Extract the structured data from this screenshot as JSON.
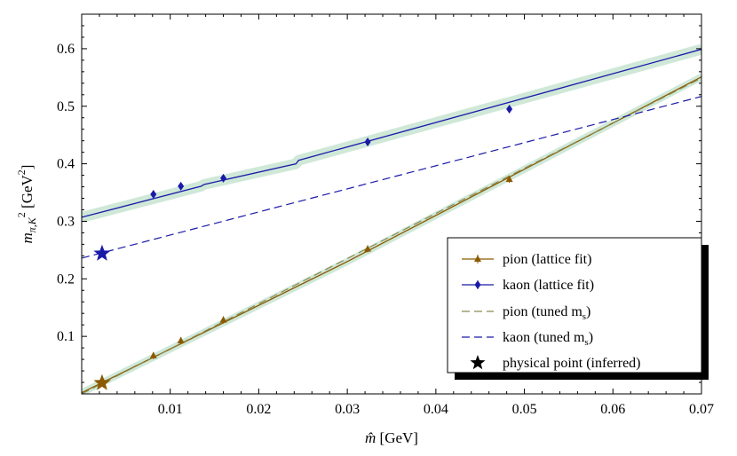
{
  "chart_data": {
    "type": "scatter",
    "title": "",
    "xlabel": "m̂ [GeV]",
    "ylabel": "m_{π,K}² [GeV²]",
    "xlim": [
      0,
      0.07
    ],
    "ylim": [
      0,
      0.66
    ],
    "xticks": [
      0.01,
      0.02,
      0.03,
      0.04,
      0.05,
      0.06,
      0.07
    ],
    "xtick_labels": [
      "0.01",
      "0.02",
      "0.03",
      "0.04",
      "0.05",
      "0.06",
      "0.07"
    ],
    "yticks": [
      0.1,
      0.2,
      0.3,
      0.4,
      0.5,
      0.6
    ],
    "ytick_labels": [
      "0.1",
      "0.2",
      "0.3",
      "0.4",
      "0.5",
      "0.6"
    ],
    "grid": false,
    "legend_position": "bottom-right",
    "series": [
      {
        "name": "pion (lattice fit)",
        "kind": "points-with-fit",
        "color": "#8B5A00",
        "marker": "triangle",
        "points": [
          {
            "x": 0.0081,
            "y": 0.0665
          },
          {
            "x": 0.0112,
            "y": 0.0925
          },
          {
            "x": 0.016,
            "y": 0.1285
          },
          {
            "x": 0.0323,
            "y": 0.252
          },
          {
            "x": 0.0483,
            "y": 0.373
          }
        ],
        "fit": [
          [
            0.0,
            0.002
          ],
          [
            0.03,
            0.23
          ],
          [
            0.07,
            0.551
          ]
        ]
      },
      {
        "name": "kaon (lattice fit)",
        "kind": "points-with-fit",
        "color": "#1a1aa8",
        "marker": "diamond",
        "points": [
          {
            "x": 0.0081,
            "y": 0.347
          },
          {
            "x": 0.0112,
            "y": 0.361
          },
          {
            "x": 0.016,
            "y": 0.375
          },
          {
            "x": 0.0323,
            "y": 0.438
          },
          {
            "x": 0.0483,
            "y": 0.495
          }
        ],
        "fit": [
          [
            0.0,
            0.307
          ],
          [
            0.0135,
            0.361
          ],
          [
            0.0138,
            0.364
          ],
          [
            0.0242,
            0.4
          ],
          [
            0.0245,
            0.406
          ],
          [
            0.07,
            0.599
          ]
        ]
      },
      {
        "name": "pion (tuned m_s)",
        "kind": "dashed-line",
        "color": "#8a8a55",
        "line": [
          [
            0.0,
            0.0
          ],
          [
            0.07,
            0.549
          ]
        ]
      },
      {
        "name": "kaon (tuned m_s)",
        "kind": "dashed-line",
        "color": "#1a1aa8",
        "line": [
          [
            0.0,
            0.236
          ],
          [
            0.07,
            0.517
          ]
        ]
      },
      {
        "name": "physical point (inferred)",
        "kind": "stars",
        "points": [
          {
            "x": 0.0023,
            "y": 0.019,
            "color": "#8B5A00"
          },
          {
            "x": 0.0023,
            "y": 0.244,
            "color": "#1a1aa8"
          }
        ]
      }
    ],
    "colors": {
      "error_band": "#cfe8d8",
      "pion": "#8B5A00",
      "kaon": "#1a1aa8",
      "pion_dashed": "#8a8a55",
      "physical_point_legend": "#000000"
    }
  }
}
